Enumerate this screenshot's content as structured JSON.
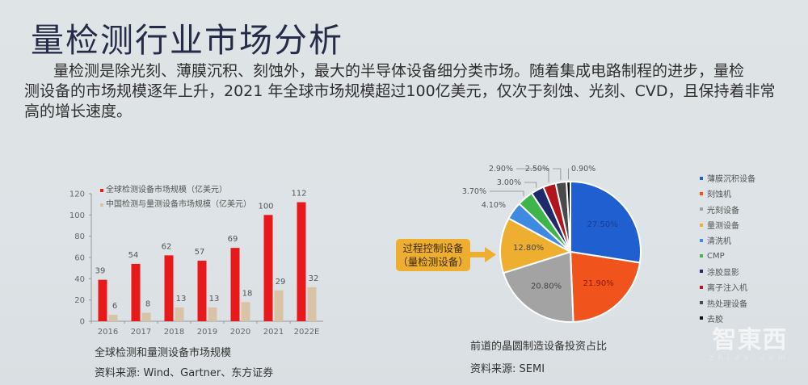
{
  "slide": {
    "title": "量检测行业市场分析",
    "paragraph_lines": [
      "量检测是除光刻、薄膜沉积、刻蚀外，最大的半导体设备细分类市场。随着集成电路制程的进步，量检",
      "测设备的市场规模逐年上升，2021 年全球市场规模超过100亿美元，仅次于刻蚀、光刻、CVD，且保持着非常",
      "高的增长速度。"
    ],
    "watermark": {
      "main": "智東西",
      "sub": "zhidx.com"
    }
  },
  "left_chart": {
    "caption": "全球检测和量测设备市场规模",
    "source": "资料来源: Wind、Gartner、东方证券"
  },
  "right_chart": {
    "caption": "前道的晶圆制造设备投资占比",
    "source": "资料来源: SEMI",
    "callout_line1": "过程控制设备",
    "callout_line2": "（量检测设备）"
  },
  "chart_data": [
    {
      "type": "bar",
      "title": "全球检测和量测设备市场规模",
      "categories": [
        "2016",
        "2017",
        "2018",
        "2019",
        "2020",
        "2021",
        "2022E"
      ],
      "series": [
        {
          "name": "全球检测设备市场规模（亿美元）",
          "color": "#e8191b",
          "values": [
            39,
            54,
            62,
            57,
            69,
            100,
            112
          ]
        },
        {
          "name": "中国检测与量测设备市场规模（亿美元）",
          "color": "#d9c3a6",
          "values": [
            6,
            8,
            13,
            13,
            18,
            29,
            32
          ]
        }
      ],
      "yticks": [
        0,
        20,
        40,
        60,
        80,
        100,
        120
      ],
      "ylim": [
        0,
        120
      ],
      "xlabel": "",
      "ylabel": "",
      "grid": false,
      "legend_position": "top-left"
    },
    {
      "type": "pie",
      "title": "前道的晶圆制造设备投资占比",
      "labels": [
        "薄膜沉积设备",
        "刻蚀机",
        "光刻设备",
        "量测设备",
        "清洗机",
        "CMP",
        "涂胶显影",
        "离子注入机",
        "热处理设备",
        "去胶"
      ],
      "values": [
        27.5,
        21.9,
        20.8,
        12.8,
        4.1,
        3.7,
        3.0,
        2.9,
        2.5,
        0.9
      ],
      "value_labels": [
        "27.50%",
        "21.90%",
        "20.80%",
        "12.80%",
        "4.10%",
        "3.70%",
        "3.00%",
        "2.90%",
        "2.50%",
        "0.90%"
      ],
      "colors": [
        "#1f5fd0",
        "#f0531c",
        "#a3a3a3",
        "#eeae2f",
        "#3f8ae0",
        "#3fb449",
        "#1d2a6b",
        "#b0161c",
        "#4a4a4a",
        "#111111"
      ],
      "legend_position": "right",
      "annotation": "过程控制设备（量检测设备）"
    }
  ]
}
